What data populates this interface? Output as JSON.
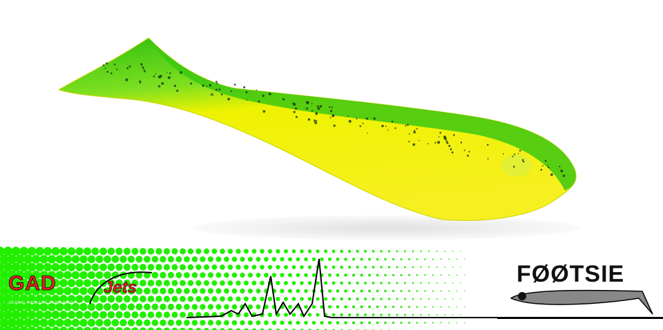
{
  "brand": {
    "logo_main": "GAD",
    "logo_sub": "Jets",
    "logo_tagline": "GLOBAL ANGLERS DEDICATED",
    "product_name": "FØØTSIE"
  },
  "colors": {
    "banner_green": "#22ee00",
    "logo_red": "#ee1c24",
    "lure_green": "#33cc11",
    "lure_yellow": "#f4f000",
    "line": "#000000"
  }
}
